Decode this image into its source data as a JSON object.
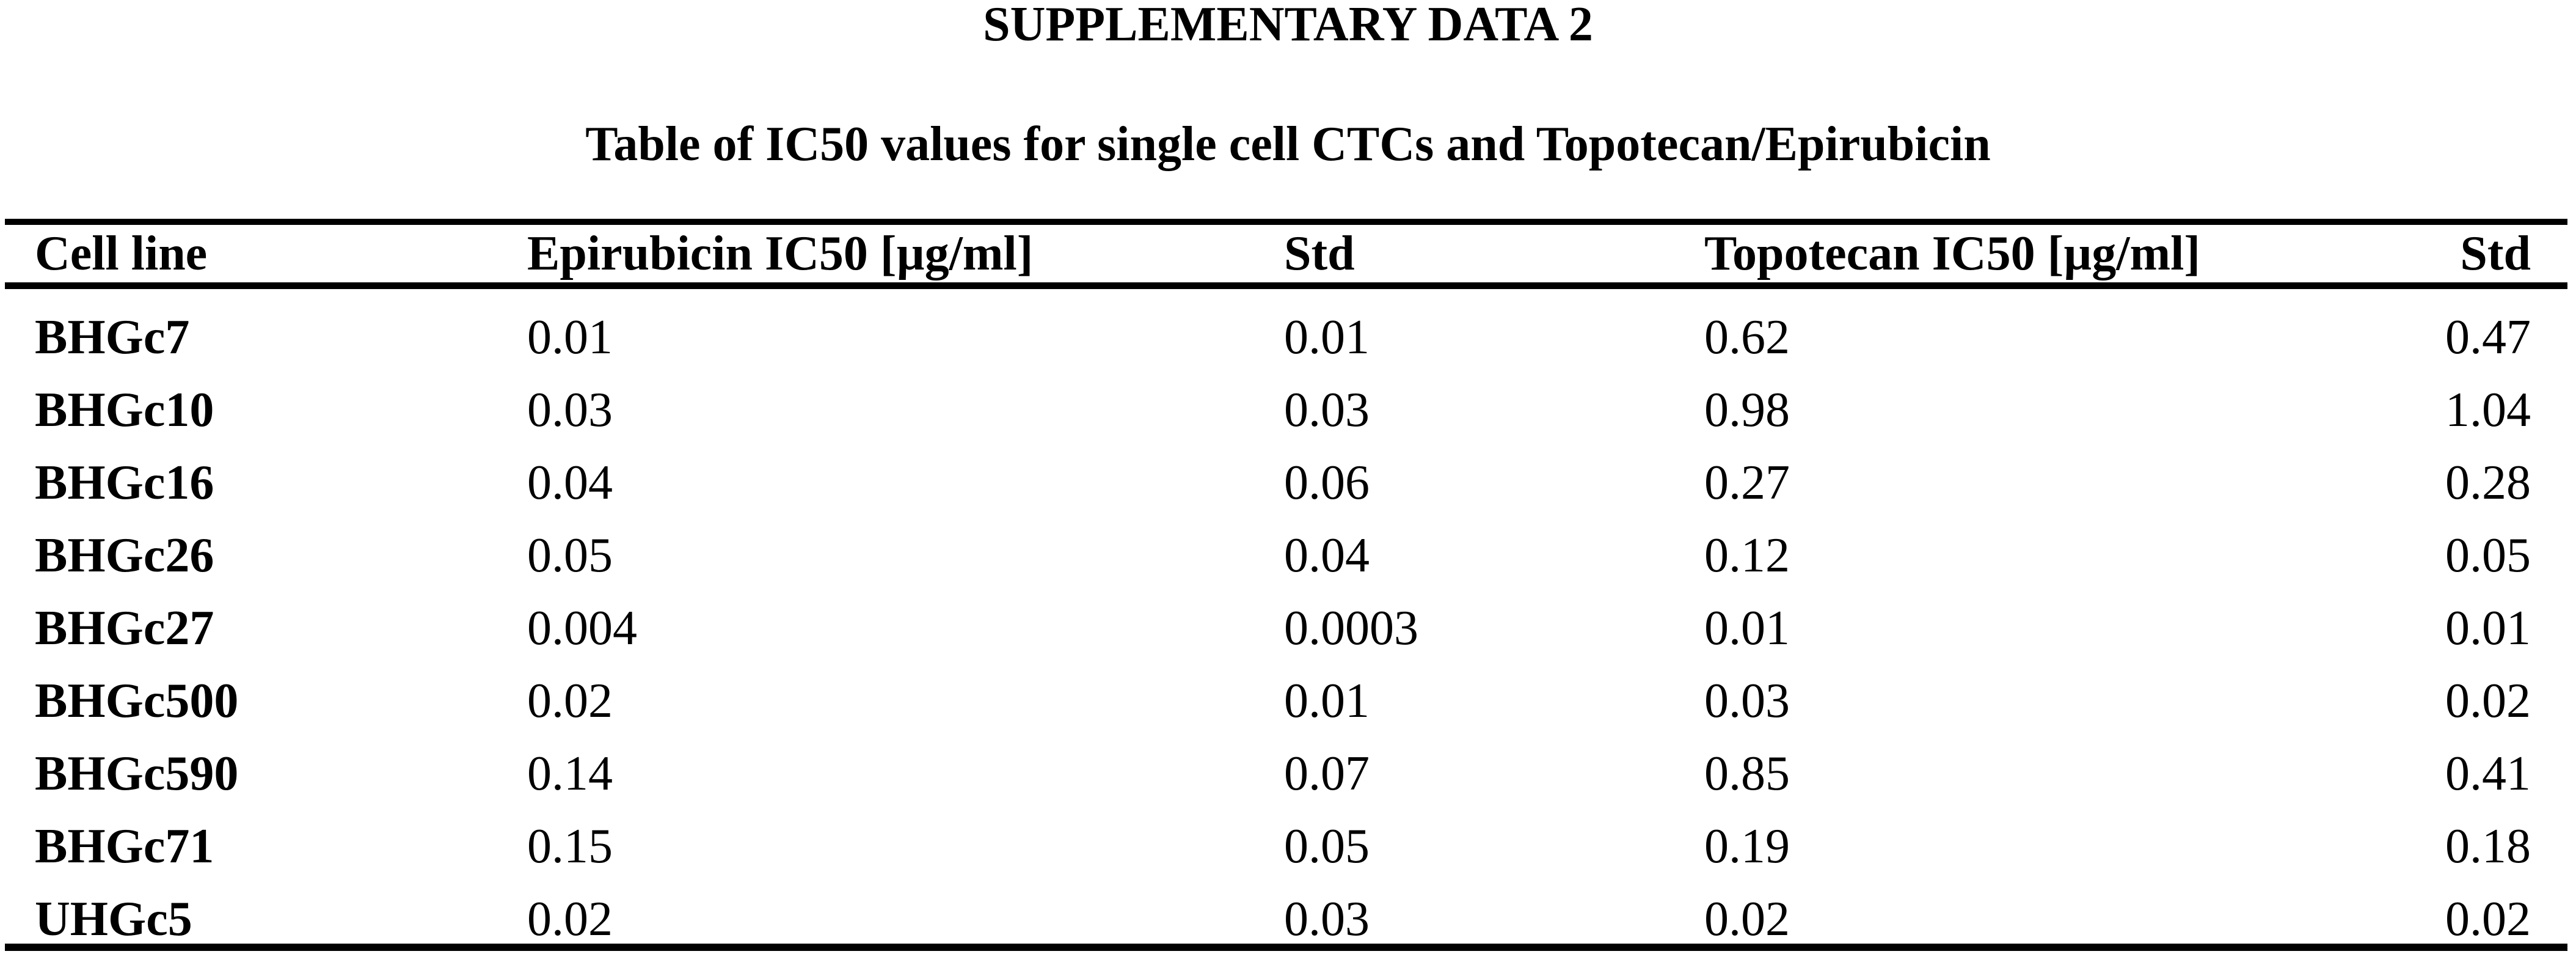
{
  "page": {
    "title": "SUPPLEMENTARY DATA 2",
    "subtitle": "Table of IC50 values for single cell CTCs and Topotecan/Epirubicin"
  },
  "table": {
    "columns": [
      "Cell line",
      "Epirubicin IC50 [µg/ml]",
      "Std",
      "Topotecan IC50 [µg/ml]",
      "Std"
    ],
    "rows": [
      {
        "cell_line": "BHGc7",
        "epirubicin_ic50": "0.01",
        "epirubicin_std": "0.01",
        "topotecan_ic50": "0.62",
        "topotecan_std": "0.47"
      },
      {
        "cell_line": "BHGc10",
        "epirubicin_ic50": "0.03",
        "epirubicin_std": "0.03",
        "topotecan_ic50": "0.98",
        "topotecan_std": "1.04"
      },
      {
        "cell_line": "BHGc16",
        "epirubicin_ic50": "0.04",
        "epirubicin_std": "0.06",
        "topotecan_ic50": "0.27",
        "topotecan_std": "0.28"
      },
      {
        "cell_line": "BHGc26",
        "epirubicin_ic50": "0.05",
        "epirubicin_std": "0.04",
        "topotecan_ic50": "0.12",
        "topotecan_std": "0.05"
      },
      {
        "cell_line": "BHGc27",
        "epirubicin_ic50": "0.004",
        "epirubicin_std": "0.0003",
        "topotecan_ic50": "0.01",
        "topotecan_std": "0.01"
      },
      {
        "cell_line": "BHGc500",
        "epirubicin_ic50": "0.02",
        "epirubicin_std": "0.01",
        "topotecan_ic50": "0.03",
        "topotecan_std": "0.02"
      },
      {
        "cell_line": "BHGc590",
        "epirubicin_ic50": "0.14",
        "epirubicin_std": "0.07",
        "topotecan_ic50": "0.85",
        "topotecan_std": "0.41"
      },
      {
        "cell_line": "BHGc71",
        "epirubicin_ic50": "0.15",
        "epirubicin_std": "0.05",
        "topotecan_ic50": "0.19",
        "topotecan_std": "0.18"
      },
      {
        "cell_line": "UHGc5",
        "epirubicin_ic50": "0.02",
        "epirubicin_std": "0.03",
        "topotecan_ic50": "0.02",
        "topotecan_std": "0.02"
      }
    ]
  },
  "chart_data": {
    "type": "table",
    "title": "Table of IC50 values for single cell CTCs and Topotecan/Epirubicin",
    "columns": [
      "Cell line",
      "Epirubicin IC50 [µg/ml]",
      "Std",
      "Topotecan IC50 [µg/ml]",
      "Std"
    ],
    "cell_lines": [
      "BHGc7",
      "BHGc10",
      "BHGc16",
      "BHGc26",
      "BHGc27",
      "BHGc500",
      "BHGc590",
      "BHGc71",
      "UHGc5"
    ],
    "epirubicin_ic50_ug_ml": [
      0.01,
      0.03,
      0.04,
      0.05,
      0.004,
      0.02,
      0.14,
      0.15,
      0.02
    ],
    "epirubicin_std": [
      0.01,
      0.03,
      0.06,
      0.04,
      0.0003,
      0.01,
      0.07,
      0.05,
      0.03
    ],
    "topotecan_ic50_ug_ml": [
      0.62,
      0.98,
      0.27,
      0.12,
      0.01,
      0.03,
      0.85,
      0.19,
      0.02
    ],
    "topotecan_std": [
      0.47,
      1.04,
      0.28,
      0.05,
      0.01,
      0.02,
      0.41,
      0.18,
      0.02
    ],
    "text_color": "#000000",
    "background_color": "#ffffff"
  }
}
